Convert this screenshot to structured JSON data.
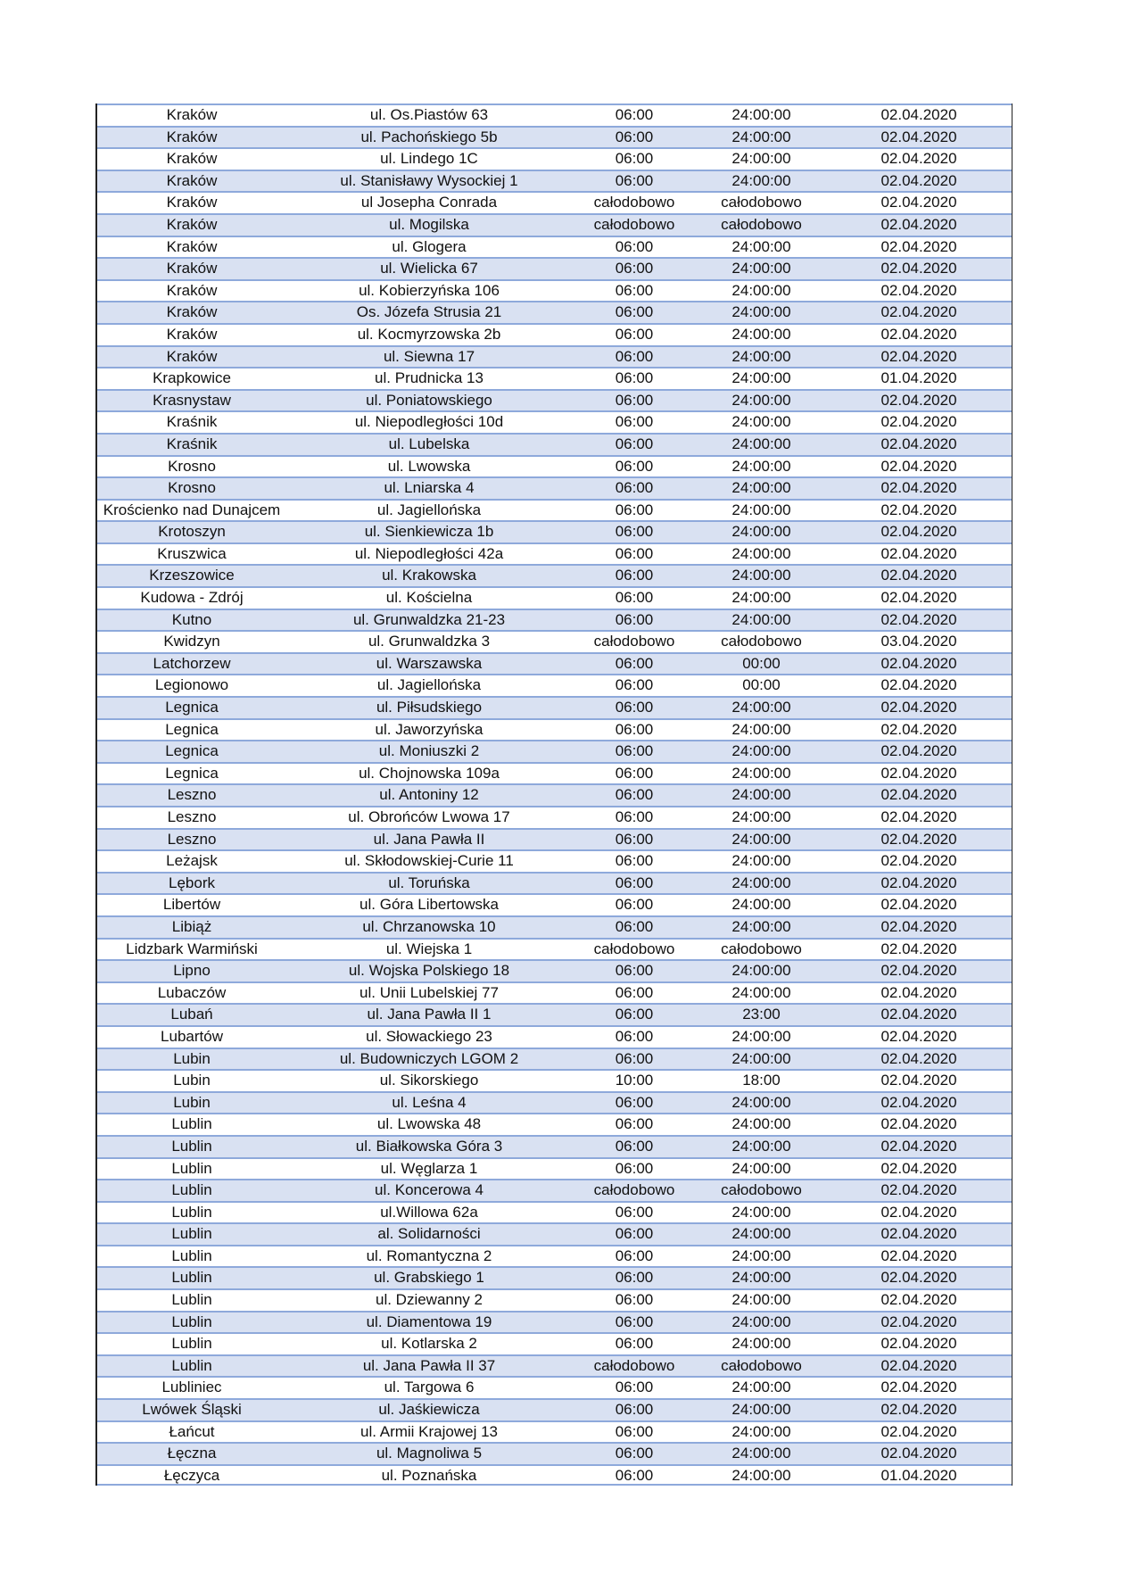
{
  "colors": {
    "row_alt": "#d9e1f2",
    "row_border": "#8ea9db"
  },
  "rows": [
    [
      "Kraków",
      "ul. Os.Piastów 63",
      "06:00",
      "24:00:00",
      "02.04.2020"
    ],
    [
      "Kraków",
      "ul. Pachońskiego 5b",
      "06:00",
      "24:00:00",
      "02.04.2020"
    ],
    [
      "Kraków",
      "ul. Lindego 1C",
      "06:00",
      "24:00:00",
      "02.04.2020"
    ],
    [
      "Kraków",
      "ul. Stanisławy Wysockiej 1",
      "06:00",
      "24:00:00",
      "02.04.2020"
    ],
    [
      "Kraków",
      "ul Josepha Conrada",
      "całodobowo",
      "całodobowo",
      "02.04.2020"
    ],
    [
      "Kraków",
      "ul. Mogilska",
      "całodobowo",
      "całodobowo",
      "02.04.2020"
    ],
    [
      "Kraków",
      "ul. Glogera",
      "06:00",
      "24:00:00",
      "02.04.2020"
    ],
    [
      "Kraków",
      "ul. Wielicka 67",
      "06:00",
      "24:00:00",
      "02.04.2020"
    ],
    [
      "Kraków",
      "ul. Kobierzyńska 106",
      "06:00",
      "24:00:00",
      "02.04.2020"
    ],
    [
      "Kraków",
      "Os. Józefa Strusia 21",
      "06:00",
      "24:00:00",
      "02.04.2020"
    ],
    [
      "Kraków",
      "ul. Kocmyrzowska 2b",
      "06:00",
      "24:00:00",
      "02.04.2020"
    ],
    [
      "Kraków",
      "ul. Siewna 17",
      "06:00",
      "24:00:00",
      "02.04.2020"
    ],
    [
      "Krapkowice",
      "ul. Prudnicka 13",
      "06:00",
      "24:00:00",
      "01.04.2020"
    ],
    [
      "Krasnystaw",
      "ul. Poniatowskiego",
      "06:00",
      "24:00:00",
      "02.04.2020"
    ],
    [
      "Kraśnik",
      "ul. Niepodległości 10d",
      "06:00",
      "24:00:00",
      "02.04.2020"
    ],
    [
      "Kraśnik",
      "ul. Lubelska",
      "06:00",
      "24:00:00",
      "02.04.2020"
    ],
    [
      "Krosno",
      "ul. Lwowska",
      "06:00",
      "24:00:00",
      "02.04.2020"
    ],
    [
      "Krosno",
      "ul. Lniarska 4",
      "06:00",
      "24:00:00",
      "02.04.2020"
    ],
    [
      "Krościenko nad Dunajcem",
      "ul. Jagiellońska",
      "06:00",
      "24:00:00",
      "02.04.2020"
    ],
    [
      "Krotoszyn",
      "ul. Sienkiewicza 1b",
      "06:00",
      "24:00:00",
      "02.04.2020"
    ],
    [
      "Kruszwica",
      "ul. Niepodległości 42a",
      "06:00",
      "24:00:00",
      "02.04.2020"
    ],
    [
      "Krzeszowice",
      "ul. Krakowska",
      "06:00",
      "24:00:00",
      "02.04.2020"
    ],
    [
      "Kudowa - Zdrój",
      "ul. Kościelna",
      "06:00",
      "24:00:00",
      "02.04.2020"
    ],
    [
      "Kutno",
      "ul. Grunwaldzka 21-23",
      "06:00",
      "24:00:00",
      "02.04.2020"
    ],
    [
      "Kwidzyn",
      "ul. Grunwaldzka  3",
      "całodobowo",
      "całodobowo",
      "03.04.2020"
    ],
    [
      "Latchorzew",
      "ul. Warszawska",
      "06:00",
      "00:00",
      "02.04.2020"
    ],
    [
      "Legionowo",
      "ul. Jagiellońska",
      "06:00",
      "00:00",
      "02.04.2020"
    ],
    [
      "Legnica",
      "ul. Piłsudskiego",
      "06:00",
      "24:00:00",
      "02.04.2020"
    ],
    [
      "Legnica",
      "ul. Jaworzyńska",
      "06:00",
      "24:00:00",
      "02.04.2020"
    ],
    [
      "Legnica",
      "ul. Moniuszki 2",
      "06:00",
      "24:00:00",
      "02.04.2020"
    ],
    [
      "Legnica",
      "ul. Chojnowska 109a",
      "06:00",
      "24:00:00",
      "02.04.2020"
    ],
    [
      "Leszno",
      "ul. Antoniny 12",
      "06:00",
      "24:00:00",
      "02.04.2020"
    ],
    [
      "Leszno",
      "ul. Obrońców Lwowa 17",
      "06:00",
      "24:00:00",
      "02.04.2020"
    ],
    [
      "Leszno",
      "ul. Jana Pawła II",
      "06:00",
      "24:00:00",
      "02.04.2020"
    ],
    [
      "Leżajsk",
      "ul. Skłodowskiej-Curie 11",
      "06:00",
      "24:00:00",
      "02.04.2020"
    ],
    [
      "Lębork",
      "ul. Toruńska",
      "06:00",
      "24:00:00",
      "02.04.2020"
    ],
    [
      "Libertów",
      "ul. Góra Libertowska",
      "06:00",
      "24:00:00",
      "02.04.2020"
    ],
    [
      "Libiąż",
      "ul. Chrzanowska 10",
      "06:00",
      "24:00:00",
      "02.04.2020"
    ],
    [
      "Lidzbark Warmiński",
      "ul. Wiejska 1",
      "całodobowo",
      "całodobowo",
      "02.04.2020"
    ],
    [
      "Lipno",
      "ul. Wojska Polskiego 18",
      "06:00",
      "24:00:00",
      "02.04.2020"
    ],
    [
      "Lubaczów",
      "ul. Unii Lubelskiej 77",
      "06:00",
      "24:00:00",
      "02.04.2020"
    ],
    [
      "Lubań",
      "ul. Jana Pawła II 1",
      "06:00",
      "23:00",
      "02.04.2020"
    ],
    [
      "Lubartów",
      "ul. Słowackiego 23",
      "06:00",
      "24:00:00",
      "02.04.2020"
    ],
    [
      "Lubin",
      "ul. Budowniczych LGOM 2",
      "06:00",
      "24:00:00",
      "02.04.2020"
    ],
    [
      "Lubin",
      "ul. Sikorskiego",
      "10:00",
      "18:00",
      "02.04.2020"
    ],
    [
      "Lubin",
      "ul. Leśna 4",
      "06:00",
      "24:00:00",
      "02.04.2020"
    ],
    [
      "Lublin",
      "ul. Lwowska 48",
      "06:00",
      "24:00:00",
      "02.04.2020"
    ],
    [
      "Lublin",
      "ul. Białkowska Góra 3",
      "06:00",
      "24:00:00",
      "02.04.2020"
    ],
    [
      "Lublin",
      "ul. Węglarza 1",
      "06:00",
      "24:00:00",
      "02.04.2020"
    ],
    [
      "Lublin",
      "ul. Koncerowa 4",
      "całodobowo",
      "całodobowo",
      "02.04.2020"
    ],
    [
      "Lublin",
      "ul.Willowa 62a",
      "06:00",
      "24:00:00",
      "02.04.2020"
    ],
    [
      "Lublin",
      "al. Solidarności",
      "06:00",
      "24:00:00",
      "02.04.2020"
    ],
    [
      "Lublin",
      "ul. Romantyczna 2",
      "06:00",
      "24:00:00",
      "02.04.2020"
    ],
    [
      "Lublin",
      "ul. Grabskiego 1",
      "06:00",
      "24:00:00",
      "02.04.2020"
    ],
    [
      "Lublin",
      "ul. Dziewanny 2",
      "06:00",
      "24:00:00",
      "02.04.2020"
    ],
    [
      "Lublin",
      "ul. Diamentowa 19",
      "06:00",
      "24:00:00",
      "02.04.2020"
    ],
    [
      "Lublin",
      "ul. Kotlarska 2",
      "06:00",
      "24:00:00",
      "02.04.2020"
    ],
    [
      "Lublin",
      "ul. Jana Pawła II 37",
      "całodobowo",
      "całodobowo",
      "02.04.2020"
    ],
    [
      "Lubliniec",
      "ul. Targowa 6",
      "06:00",
      "24:00:00",
      "02.04.2020"
    ],
    [
      "Lwówek Śląski",
      "ul. Jaśkiewicza",
      "06:00",
      "24:00:00",
      "02.04.2020"
    ],
    [
      "Łańcut",
      "ul. Armii Krajowej 13",
      "06:00",
      "24:00:00",
      "02.04.2020"
    ],
    [
      "Łęczna",
      "ul. Magnoliwa 5",
      "06:00",
      "24:00:00",
      "02.04.2020"
    ],
    [
      "Łęczyca",
      "ul. Poznańska",
      "06:00",
      "24:00:00",
      "01.04.2020"
    ]
  ]
}
